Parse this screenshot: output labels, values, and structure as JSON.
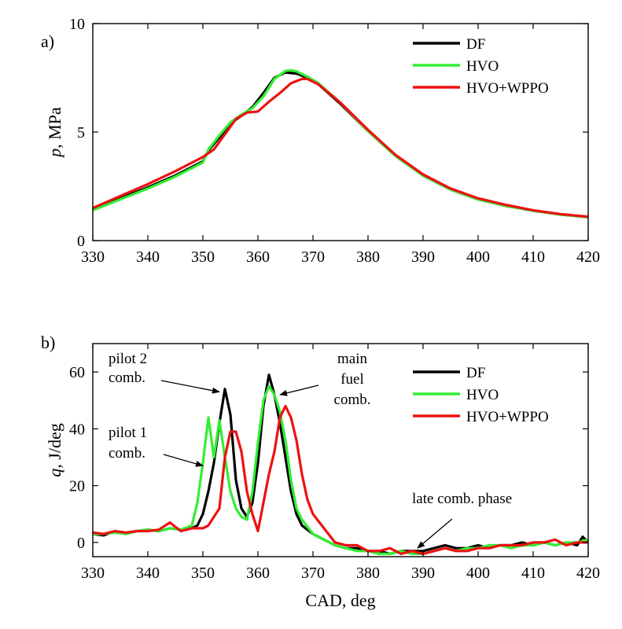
{
  "colors": {
    "DF": "#000000",
    "HVO": "#33ee33",
    "HVO+WPPO": "#ee1111"
  },
  "chart_data": [
    {
      "panel": "a)",
      "type": "line",
      "xlabel": "",
      "ylabel_var": "p",
      "ylabel_unit": ",  MPa",
      "xlim": [
        330,
        420
      ],
      "ylim": [
        0,
        10
      ],
      "xticks": [
        330,
        340,
        350,
        360,
        370,
        380,
        390,
        400,
        410,
        420
      ],
      "yticks": [
        0,
        5,
        10
      ],
      "legend": "top-right",
      "grid": false,
      "series": [
        {
          "name": "DF",
          "x": [
            330,
            335,
            340,
            345,
            350,
            351,
            353,
            355,
            357,
            359,
            361,
            363,
            365,
            366,
            367,
            369,
            371,
            375,
            380,
            385,
            390,
            395,
            400,
            405,
            410,
            415,
            420
          ],
          "y": [
            1.45,
            1.95,
            2.45,
            3.0,
            3.65,
            4.15,
            4.75,
            5.4,
            5.75,
            6.15,
            6.8,
            7.5,
            7.75,
            7.72,
            7.7,
            7.5,
            7.2,
            6.3,
            5.05,
            3.9,
            3.0,
            2.35,
            1.9,
            1.6,
            1.38,
            1.2,
            1.08
          ]
        },
        {
          "name": "HVO",
          "x": [
            330,
            335,
            340,
            345,
            350,
            351,
            353,
            355,
            357,
            359,
            361,
            363,
            365,
            366,
            367,
            369,
            371,
            375,
            380,
            385,
            390,
            395,
            400,
            405,
            410,
            415,
            420
          ],
          "y": [
            1.4,
            1.9,
            2.4,
            2.95,
            3.6,
            4.2,
            4.85,
            5.45,
            5.8,
            6.1,
            6.65,
            7.45,
            7.82,
            7.85,
            7.8,
            7.55,
            7.25,
            6.35,
            5.05,
            3.9,
            3.0,
            2.35,
            1.9,
            1.6,
            1.38,
            1.2,
            1.08
          ]
        },
        {
          "name": "HVO+WPPO",
          "x": [
            330,
            335,
            340,
            345,
            350,
            352,
            354,
            356,
            358,
            360,
            362,
            364,
            366,
            368,
            369,
            371,
            375,
            380,
            385,
            390,
            395,
            400,
            405,
            410,
            415,
            420
          ],
          "y": [
            1.5,
            2.05,
            2.6,
            3.2,
            3.85,
            4.2,
            4.9,
            5.6,
            5.9,
            5.95,
            6.4,
            6.8,
            7.25,
            7.45,
            7.45,
            7.2,
            6.35,
            5.1,
            3.95,
            3.05,
            2.4,
            1.95,
            1.65,
            1.4,
            1.22,
            1.1
          ]
        }
      ]
    },
    {
      "panel": "b)",
      "type": "line",
      "xlabel": "CAD, deg",
      "ylabel_var": "q",
      "ylabel_unit": ",  J/deg",
      "xlim": [
        330,
        420
      ],
      "ylim": [
        -5,
        70
      ],
      "xticks": [
        330,
        340,
        350,
        360,
        370,
        380,
        390,
        400,
        410,
        420
      ],
      "yticks": [
        0,
        20,
        40,
        60
      ],
      "legend": "top-right",
      "grid": false,
      "annotations": [
        {
          "text_lines": [
            "pilot 2",
            "comb."
          ],
          "arrow_to": [
            353,
            53
          ]
        },
        {
          "text_lines": [
            "pilot 1",
            "comb."
          ],
          "arrow_to": [
            350,
            27
          ]
        },
        {
          "text_lines": [
            "main",
            "fuel",
            "comb."
          ],
          "arrow_to": [
            364,
            52
          ]
        },
        {
          "text_lines": [
            "late comb. phase"
          ],
          "arrow_to": [
            389,
            -2
          ]
        }
      ],
      "series": [
        {
          "name": "DF",
          "x": [
            330,
            332,
            334,
            336,
            338,
            340,
            342,
            344,
            346,
            348,
            349,
            350,
            351,
            352,
            353,
            354,
            355,
            356,
            357,
            358,
            359,
            360,
            361,
            362,
            363,
            364,
            365,
            366,
            367,
            368,
            370,
            372,
            374,
            376,
            378,
            380,
            382,
            384,
            386,
            388,
            390,
            392,
            394,
            396,
            398,
            400,
            402,
            404,
            406,
            408,
            410,
            412,
            414,
            416,
            418,
            419,
            420
          ],
          "y": [
            3,
            2.5,
            4,
            3,
            4,
            4.5,
            4,
            5,
            4.5,
            5,
            6,
            10,
            18,
            28,
            42,
            54,
            45,
            22,
            12,
            9,
            14,
            28,
            48,
            59,
            52,
            42,
            30,
            18,
            10,
            6,
            3,
            1,
            -1,
            -2,
            -2,
            -3,
            -3,
            -4,
            -3,
            -3,
            -3,
            -2,
            -1,
            -2,
            -2,
            -1,
            -2,
            -1,
            -1,
            0,
            -1,
            0,
            -1,
            0,
            -1,
            2,
            0
          ]
        },
        {
          "name": "HVO",
          "x": [
            330,
            332,
            334,
            336,
            338,
            340,
            342,
            344,
            346,
            348,
            349,
            350,
            351,
            352,
            353,
            354,
            355,
            356,
            357,
            358,
            359,
            360,
            361,
            362,
            363,
            364,
            365,
            366,
            367,
            368,
            370,
            372,
            374,
            376,
            378,
            380,
            382,
            384,
            386,
            388,
            390,
            392,
            394,
            396,
            398,
            400,
            402,
            404,
            406,
            408,
            410,
            412,
            414,
            416,
            418,
            420
          ],
          "y": [
            3,
            3,
            3.5,
            3,
            4,
            4.5,
            4,
            5,
            4.5,
            6,
            14,
            28,
            44,
            30,
            43,
            30,
            18,
            12,
            9,
            8,
            18,
            35,
            50,
            55,
            52,
            46,
            36,
            22,
            12,
            8,
            3,
            1,
            -1,
            -2,
            -3,
            -3,
            -4,
            -4,
            -3,
            -4,
            -4,
            -3,
            -2,
            -3,
            -2,
            -2,
            -1,
            -1,
            -2,
            -1,
            -1,
            0,
            -1,
            0,
            0,
            1
          ]
        },
        {
          "name": "HVO+WPPO",
          "x": [
            330,
            332,
            334,
            336,
            338,
            340,
            342,
            344,
            346,
            348,
            350,
            351,
            352,
            353,
            354,
            355,
            356,
            357,
            358,
            359,
            360,
            361,
            362,
            363,
            364,
            365,
            366,
            367,
            368,
            369,
            370,
            372,
            374,
            376,
            378,
            380,
            382,
            384,
            386,
            388,
            390,
            392,
            394,
            396,
            398,
            400,
            402,
            404,
            406,
            408,
            410,
            412,
            414,
            416,
            418,
            420
          ],
          "y": [
            3.5,
            3,
            4,
            3.5,
            4,
            4,
            4.5,
            7,
            4,
            5,
            5,
            6,
            9,
            12,
            30,
            39,
            39,
            32,
            18,
            10,
            4,
            14,
            24,
            32,
            44,
            48,
            44,
            36,
            24,
            15,
            10,
            5,
            0,
            -1,
            -1,
            -3,
            -3,
            -2,
            -4,
            -3,
            -4,
            -3,
            -2,
            -3,
            -3,
            -2,
            -2,
            -1,
            -1,
            -1,
            0,
            0,
            1,
            -1,
            0,
            0
          ]
        }
      ]
    }
  ]
}
